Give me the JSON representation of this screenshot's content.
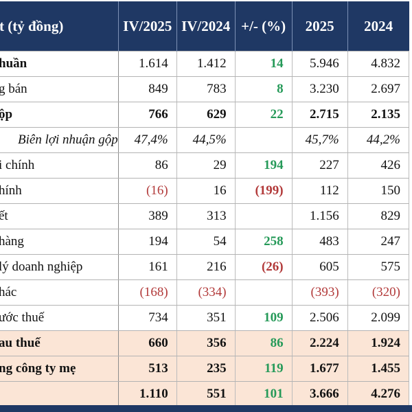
{
  "colors": {
    "header_bg": "#1f3864",
    "header_text": "#ffffff",
    "highlight_bg": "#fbe5d6",
    "positive": "#269a59",
    "negative": "#b23a3a",
    "grid": "#b3b3b3"
  },
  "chart_data": {
    "type": "table",
    "columns": [
      "t (tỷ đồng)",
      "IV/2025",
      "IV/2024",
      "+/- (%)",
      "2025",
      "2024"
    ],
    "rows": [
      {
        "label": "huần",
        "values": [
          "1.614",
          "1.412",
          "14",
          "5.946",
          "4.832"
        ],
        "style": "bold-label",
        "highlight": false,
        "indent": false
      },
      {
        "label": "g bán",
        "values": [
          "849",
          "783",
          "8",
          "3.230",
          "2.697"
        ],
        "style": "",
        "highlight": false,
        "indent": false
      },
      {
        "label": "ộp",
        "values": [
          "766",
          "629",
          "22",
          "2.715",
          "2.135"
        ],
        "style": "bold",
        "highlight": false,
        "indent": false
      },
      {
        "label": "Biên lợi nhuận gộp",
        "values": [
          "47,4%",
          "44,5%",
          "",
          "45,7%",
          "44,2%"
        ],
        "style": "italic",
        "highlight": false,
        "indent": true
      },
      {
        "label": "i chính",
        "values": [
          "86",
          "29",
          "194",
          "227",
          "426"
        ],
        "style": "",
        "highlight": false,
        "indent": false
      },
      {
        "label": "hính",
        "values": [
          "(16)",
          "16",
          "(199)",
          "112",
          "150"
        ],
        "style": "",
        "highlight": false,
        "indent": false
      },
      {
        "label": "ết",
        "values": [
          "389",
          "313",
          "",
          "1.156",
          "829"
        ],
        "style": "",
        "highlight": false,
        "indent": false
      },
      {
        "label": "hàng",
        "values": [
          "194",
          "54",
          "258",
          "483",
          "247"
        ],
        "style": "",
        "highlight": false,
        "indent": false
      },
      {
        "label": "lý doanh nghiệp",
        "values": [
          "161",
          "216",
          "(26)",
          "605",
          "575"
        ],
        "style": "",
        "highlight": false,
        "indent": false
      },
      {
        "label": "hác",
        "values": [
          "(168)",
          "(334)",
          "",
          "(393)",
          "(320)"
        ],
        "style": "",
        "highlight": false,
        "indent": false
      },
      {
        "label": "ước thuế",
        "values": [
          "734",
          "351",
          "109",
          "2.506",
          "2.099"
        ],
        "style": "",
        "highlight": false,
        "indent": false
      },
      {
        "label": "au thuế",
        "values": [
          "660",
          "356",
          "86",
          "2.224",
          "1.924"
        ],
        "style": "bold",
        "highlight": true,
        "indent": false
      },
      {
        "label": "ng công ty mẹ",
        "values": [
          "513",
          "235",
          "119",
          "1.677",
          "1.455"
        ],
        "style": "bold",
        "highlight": true,
        "indent": false
      },
      {
        "label": "",
        "values": [
          "1.110",
          "551",
          "101",
          "3.666",
          "4.276"
        ],
        "style": "bold",
        "highlight": true,
        "indent": false
      }
    ]
  }
}
